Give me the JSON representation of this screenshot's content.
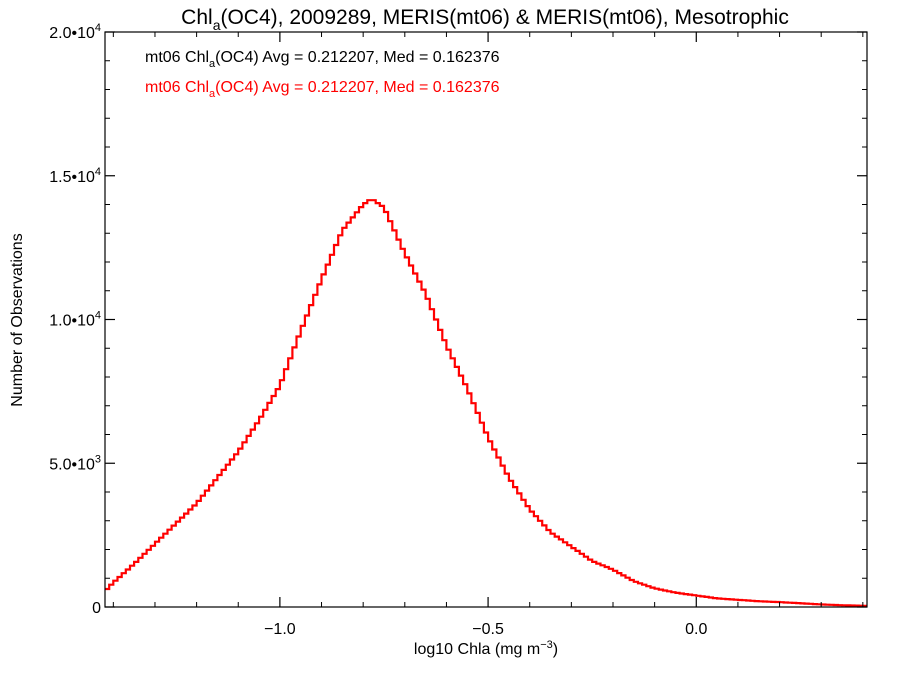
{
  "chart_data": {
    "type": "line",
    "title": {
      "prefix": "Chl",
      "sub": "a",
      "suffix": "(OC4), 2009289, MERIS(mt06) & MERIS(mt06), Mesotrophic"
    },
    "xlabel": {
      "prefix": "log10 Chla (mg m",
      "sup": "−3",
      "suffix": ")"
    },
    "ylabel": "Number of Observations",
    "xlim": [
      -1.42,
      0.41
    ],
    "ylim": [
      0,
      20000
    ],
    "xticks": [
      {
        "value": -1.0,
        "label": "−1.0"
      },
      {
        "value": -0.5,
        "label": "−0.5"
      },
      {
        "value": 0.0,
        "label": "0.0"
      }
    ],
    "yticks": [
      {
        "value": 0,
        "mant": "0",
        "exp": ""
      },
      {
        "value": 5000,
        "mant": "5.0•10",
        "exp": "3"
      },
      {
        "value": 10000,
        "mant": "1.0•10",
        "exp": "4"
      },
      {
        "value": 15000,
        "mant": "1.5•10",
        "exp": "4"
      },
      {
        "value": 20000,
        "mant": "2.0•10",
        "exp": "4"
      }
    ],
    "legend": [
      {
        "prefix": "mt06 Chl",
        "sub": "a",
        "suffix": "(OC4) Avg = 0.212207, Med = 0.162376",
        "color": "#000000"
      },
      {
        "prefix": "mt06 Chl",
        "sub": "a",
        "suffix": "(OC4) Avg = 0.212207, Med = 0.162376",
        "color": "#ff0000"
      }
    ],
    "grid": false,
    "legend_position": "top-left",
    "series": [
      {
        "color": "#ff0000",
        "x": [
          -1.42,
          -1.4,
          -1.35,
          -1.3,
          -1.25,
          -1.2,
          -1.15,
          -1.1,
          -1.05,
          -1.0,
          -0.95,
          -0.9,
          -0.85,
          -0.8,
          -0.78,
          -0.75,
          -0.7,
          -0.65,
          -0.6,
          -0.55,
          -0.5,
          -0.45,
          -0.4,
          -0.35,
          -0.3,
          -0.25,
          -0.2,
          -0.15,
          -0.1,
          -0.05,
          0.0,
          0.05,
          0.1,
          0.15,
          0.2,
          0.25,
          0.3,
          0.35,
          0.41
        ],
        "y": [
          550,
          850,
          1500,
          2200,
          2900,
          3600,
          4500,
          5400,
          6500,
          7700,
          9600,
          11400,
          13100,
          14000,
          14200,
          13900,
          12300,
          10900,
          9100,
          7600,
          5900,
          4500,
          3400,
          2600,
          2100,
          1600,
          1300,
          900,
          650,
          500,
          400,
          300,
          250,
          200,
          170,
          130,
          90,
          60,
          40
        ]
      }
    ]
  }
}
